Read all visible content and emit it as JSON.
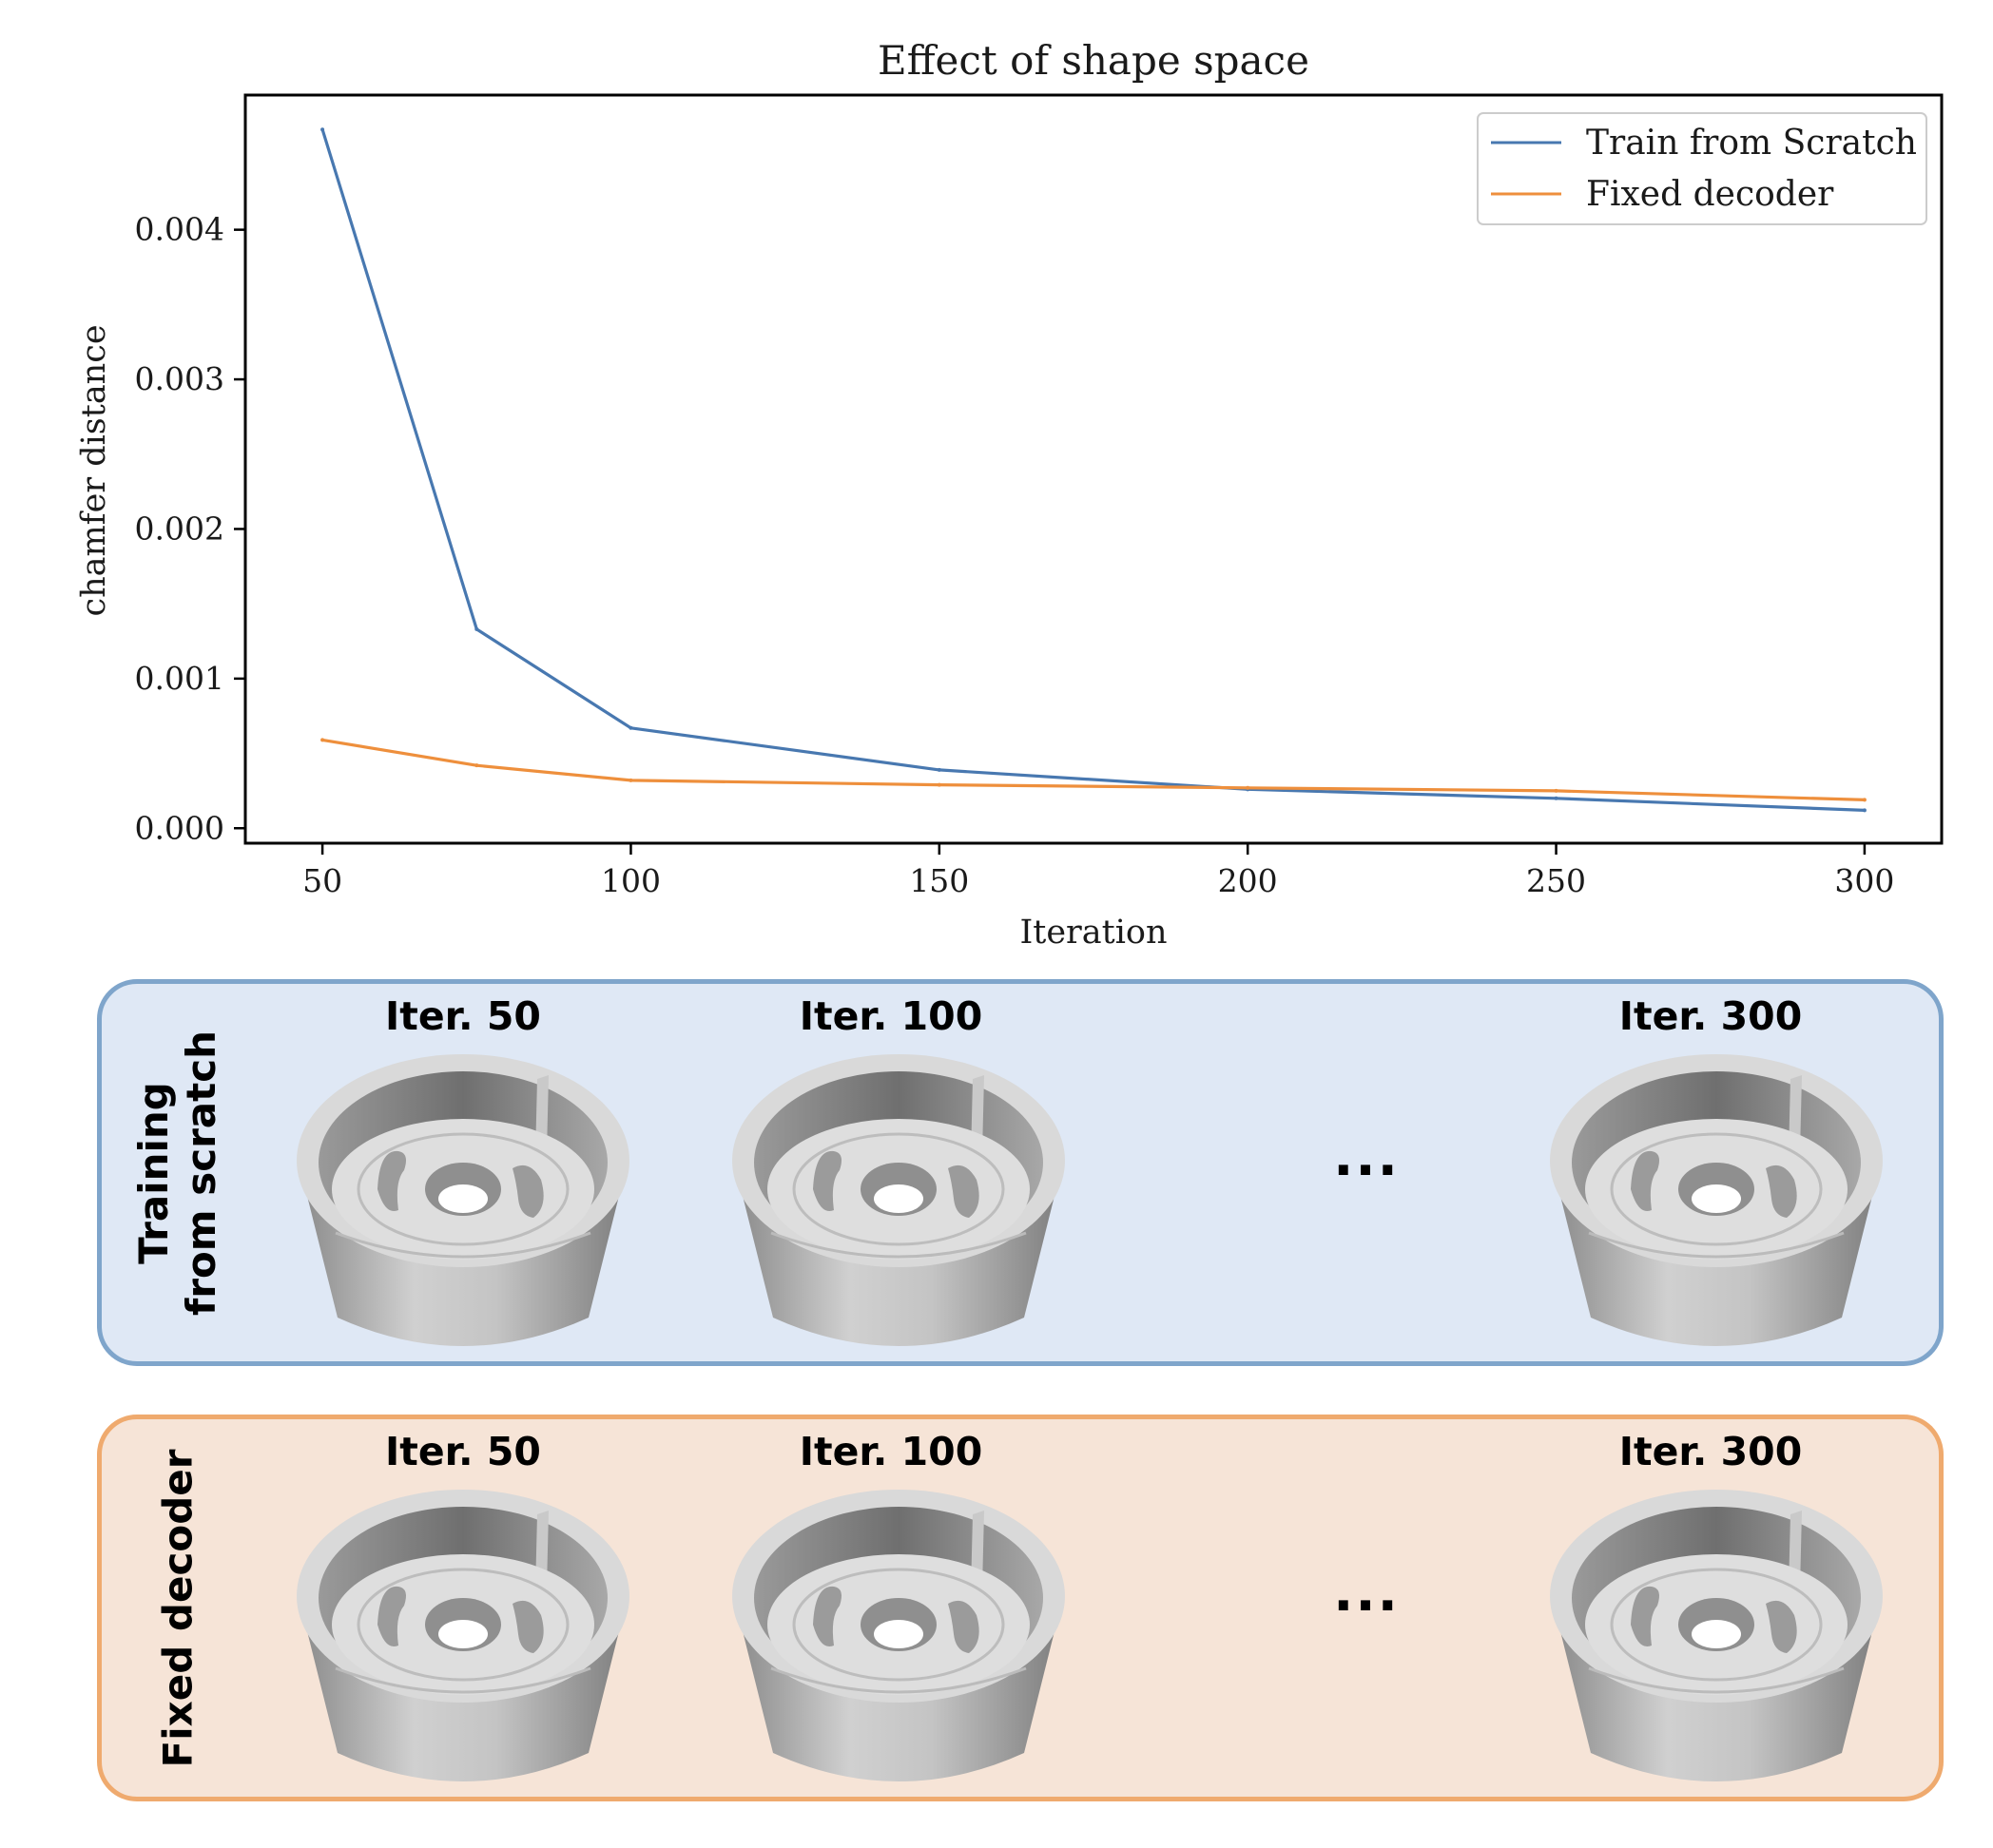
{
  "chart_data": {
    "type": "line",
    "title": "Effect of shape space",
    "xlabel": "Iteration",
    "ylabel": "chamfer distance",
    "xlim": [
      37.5,
      312.5
    ],
    "ylim": [
      -0.0001,
      0.0049
    ],
    "xticks": [
      50,
      100,
      150,
      200,
      250,
      300
    ],
    "yticks": [
      0.0,
      0.001,
      0.002,
      0.003,
      0.004
    ],
    "ytick_labels": [
      "0.000",
      "0.001",
      "0.002",
      "0.003",
      "0.004"
    ],
    "legend_position": "top-right",
    "grid": false,
    "series": [
      {
        "name": "Train from Scratch",
        "color": "#4878b0",
        "x": [
          50,
          75,
          100,
          150,
          200,
          250,
          300
        ],
        "y": [
          0.00467,
          0.00133,
          0.00067,
          0.00039,
          0.00026,
          0.0002,
          0.00012
        ]
      },
      {
        "name": "Fixed decoder",
        "color": "#ee8f3c",
        "x": [
          50,
          75,
          100,
          150,
          200,
          250,
          300
        ],
        "y": [
          0.00059,
          0.00042,
          0.00032,
          0.00029,
          0.00027,
          0.00025,
          0.00019
        ]
      }
    ]
  },
  "panels": {
    "scratch": {
      "label": "Training\nfrom scratch",
      "iters": [
        "Iter. 50",
        "Iter. 100",
        "Iter. 300"
      ],
      "ellipsis": "...",
      "accent": "#7fa5cb"
    },
    "fixed": {
      "label": "Fixed decoder",
      "iters": [
        "Iter. 50",
        "Iter. 100",
        "Iter. 300"
      ],
      "ellipsis": "...",
      "accent": "#efaa6e"
    }
  }
}
